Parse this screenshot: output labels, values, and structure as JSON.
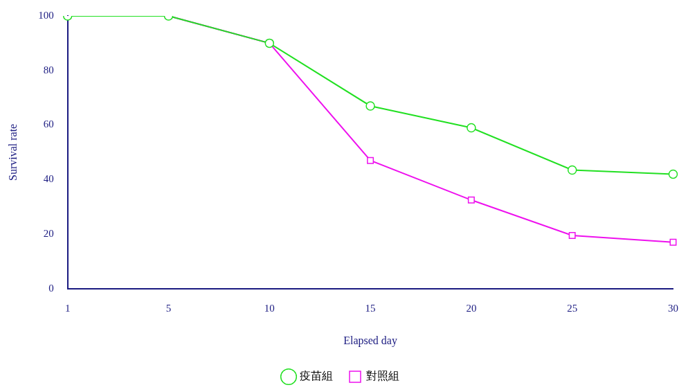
{
  "chart_data": {
    "type": "line",
    "x_label": "Elapsed day",
    "y_label": "Survival rate",
    "categories": [
      "1",
      "5",
      "10",
      "15",
      "20",
      "25",
      "30"
    ],
    "series": [
      {
        "name": "疫苗組",
        "color": "#22e022",
        "marker": "circle",
        "values": [
          100,
          100,
          90,
          67,
          59,
          43.5,
          42
        ]
      },
      {
        "name": "對照組",
        "color": "#ee11ee",
        "marker": "square",
        "values": [
          100,
          100,
          90,
          47,
          32.5,
          19.5,
          17
        ]
      }
    ],
    "ylim": [
      0,
      100
    ],
    "yticks": [
      0,
      20,
      40,
      60,
      80,
      100
    ],
    "grid": false,
    "legend": "bottom"
  }
}
